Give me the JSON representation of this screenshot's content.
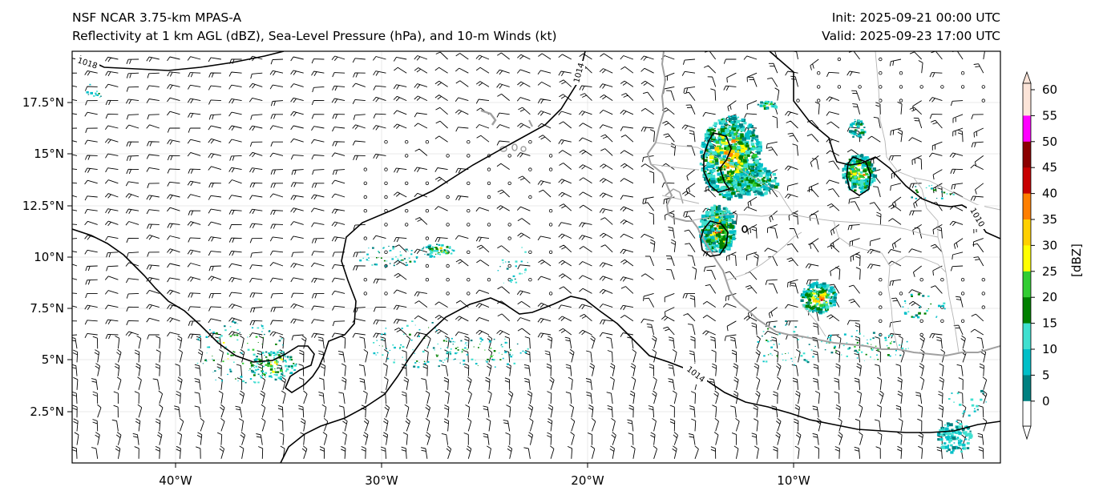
{
  "header": {
    "model_title": "NSF NCAR 3.75-km MPAS-A",
    "fields_title": "Reflectivity at 1 km AGL (dBZ), Sea-Level Pressure (hPa), and 10-m Winds (kt)",
    "init": "Init: 2025-09-21 00:00 UTC",
    "valid": "Valid: 2025-09-23 17:00 UTC"
  },
  "map": {
    "lon_ticks": [
      "40°W",
      "30°W",
      "20°W",
      "10°W"
    ],
    "lat_ticks": [
      "17.5°N",
      "15°N",
      "12.5°N",
      "10°N",
      "7.5°N",
      "5°N",
      "2.5°N"
    ],
    "isobar_labels": [
      "1018",
      "1014",
      "1014",
      "1010"
    ]
  },
  "colorbar": {
    "label": "[dBZ]",
    "ticks": [
      "60",
      "55",
      "50",
      "45",
      "40",
      "35",
      "30",
      "25",
      "20",
      "15",
      "10",
      "5",
      "0"
    ],
    "colors": [
      "#fce4d8",
      "#ff00ff",
      "#8b0000",
      "#c80000",
      "#ff7f00",
      "#ffd000",
      "#ffff00",
      "#32cd32",
      "#008000",
      "#40e0d0",
      "#00bfc8",
      "#008080",
      "#ffffff"
    ]
  },
  "colors": {
    "isobar": "#000000",
    "coastline": "#a0a0a0",
    "barb": "#000000"
  }
}
